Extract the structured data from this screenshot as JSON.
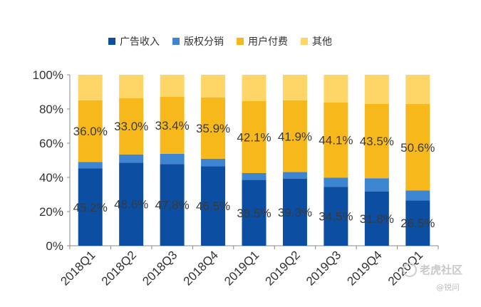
{
  "chart_data": {
    "type": "bar",
    "stacked": true,
    "categories": [
      "2018Q1",
      "2018Q2",
      "2018Q3",
      "2018Q4",
      "2019Q1",
      "2019Q2",
      "2019Q3",
      "2019Q4",
      "2020Q1"
    ],
    "series": [
      {
        "name": "广告收入",
        "color": "#0b4ea2",
        "values": [
          45.2,
          48.6,
          47.8,
          46.5,
          38.5,
          39.3,
          34.5,
          31.8,
          26.5
        ]
      },
      {
        "name": "版权分销",
        "color": "#3d85d1",
        "values": [
          3.8,
          4.8,
          6.0,
          4.4,
          4.0,
          3.8,
          5.3,
          7.7,
          5.8
        ]
      },
      {
        "name": "用户付费",
        "color": "#f7b81b",
        "values": [
          36.0,
          33.0,
          33.4,
          35.9,
          42.1,
          41.9,
          44.1,
          43.5,
          50.6
        ]
      },
      {
        "name": "其他",
        "color": "#fdd667",
        "values": [
          15.0,
          13.6,
          12.8,
          13.2,
          15.4,
          15.0,
          16.1,
          17.0,
          17.1
        ]
      }
    ],
    "labels": {
      "ad": [
        "45.2%",
        "48.6%",
        "47.8%",
        "46.5%",
        "38.5%",
        "39.3%",
        "34.5%",
        "31.8%",
        "26.5%"
      ],
      "paid": [
        "36.0%",
        "33.0%",
        "33.4%",
        "35.9%",
        "42.1%",
        "41.9%",
        "44.1%",
        "43.5%",
        "50.6%"
      ]
    },
    "ylim": [
      0,
      100
    ],
    "yticks": [
      "0%",
      "20%",
      "40%",
      "60%",
      "80%",
      "100%"
    ],
    "grid": false,
    "legend_position": "top"
  },
  "legend": [
    {
      "label": "广告收入",
      "color": "#0b4ea2"
    },
    {
      "label": "版权分销",
      "color": "#3d85d1"
    },
    {
      "label": "用户付费",
      "color": "#f7b81b"
    },
    {
      "label": "其他",
      "color": "#fdd667"
    }
  ],
  "watermark": {
    "title": "老虎社区",
    "sub": "@锐问"
  }
}
